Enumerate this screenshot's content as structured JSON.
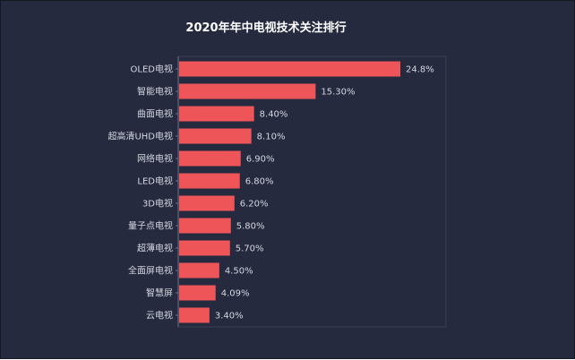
{
  "chart_data": {
    "type": "bar",
    "orientation": "horizontal",
    "title": "2020年年中电视技术关注排行",
    "categories": [
      "OLED电视",
      "智能电视",
      "曲面电视",
      "超高清UHD电视",
      "网络电视",
      "LED电视",
      "3D电视",
      "量子点电视",
      "超薄电视",
      "全面屏电视",
      "智慧屏",
      "云电视"
    ],
    "values": [
      24.8,
      15.3,
      8.4,
      8.1,
      6.9,
      6.8,
      6.2,
      5.8,
      5.7,
      4.5,
      4.09,
      3.4
    ],
    "value_labels": [
      "24.8%",
      "15.30%",
      "8.40%",
      "8.10%",
      "6.90%",
      "6.80%",
      "6.20%",
      "5.80%",
      "5.70%",
      "4.50%",
      "4.09%",
      "3.40%"
    ],
    "xlabel": "",
    "ylabel": "",
    "xlim": [
      0,
      27.5
    ],
    "grid": false,
    "colors": {
      "background": "#262a3e",
      "bar": "#ee5559",
      "text": "#d4d6e0",
      "title": "#ffffff",
      "axis": "#70748a"
    }
  }
}
